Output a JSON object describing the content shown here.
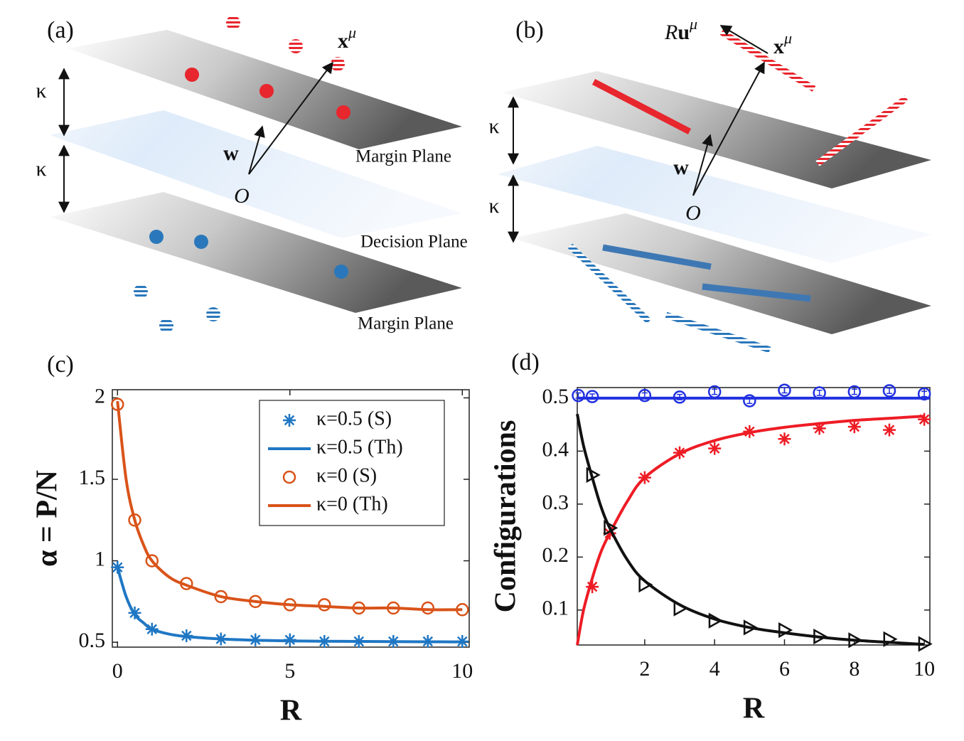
{
  "panel_a": {
    "label": "(a)",
    "kappa_top": "κ",
    "kappa_bottom": "κ",
    "w": "w",
    "origin": "O",
    "x_label": {
      "base": "x",
      "sup": "μ"
    },
    "margin_top": "Margin Plane",
    "decision": "Decision Plane",
    "margin_bottom": "Margin Plane"
  },
  "panel_b": {
    "label": "(b)",
    "kappa_top": "κ",
    "kappa_bottom": "κ",
    "w": "w",
    "origin": "O",
    "x_label": {
      "base": "x",
      "sup": "μ"
    },
    "ru_label": {
      "italic": "R",
      "base": "u",
      "sup": "μ"
    }
  },
  "chart_data": [
    {
      "type": "line",
      "panel_label": "(c)",
      "xlabel": "R",
      "ylabel": "α = P/N",
      "xlim": [
        -0.15,
        10.2
      ],
      "ylim": [
        0.47,
        2.05
      ],
      "xticks": [
        0,
        5,
        10
      ],
      "yticks": [
        0.5,
        1,
        1.5,
        2
      ],
      "legend": "upper right",
      "series": [
        {
          "name": "κ=0.5 (S)",
          "color": "#1f77c4",
          "marker": "asterisk",
          "line": false,
          "x": [
            0,
            0.5,
            1,
            2,
            3,
            4,
            5,
            6,
            7,
            8,
            9,
            10
          ],
          "values": [
            0.96,
            0.68,
            0.58,
            0.54,
            0.52,
            0.515,
            0.515,
            0.505,
            0.505,
            0.505,
            0.505,
            0.505
          ]
        },
        {
          "name": "κ=0.5 (Th)",
          "color": "#1f77c4",
          "marker": "none",
          "line": true,
          "x": [
            0,
            0.25,
            0.5,
            0.75,
            1,
            1.5,
            2,
            3,
            4,
            5,
            6,
            7,
            8,
            9,
            10
          ],
          "values": [
            0.96,
            0.78,
            0.67,
            0.62,
            0.58,
            0.55,
            0.535,
            0.52,
            0.512,
            0.508,
            0.506,
            0.505,
            0.504,
            0.503,
            0.502
          ]
        },
        {
          "name": "κ=0 (S)",
          "color": "#d95319",
          "marker": "circle",
          "line": false,
          "x": [
            0,
            0.5,
            1,
            2,
            3,
            4,
            5,
            6,
            7,
            8,
            9,
            10
          ],
          "values": [
            1.96,
            1.25,
            1.0,
            0.86,
            0.78,
            0.75,
            0.73,
            0.73,
            0.71,
            0.71,
            0.71,
            0.7
          ]
        },
        {
          "name": "κ=0 (Th)",
          "color": "#d95319",
          "marker": "none",
          "line": true,
          "x": [
            0,
            0.25,
            0.5,
            0.75,
            1,
            1.5,
            2,
            3,
            4,
            5,
            6,
            7,
            8,
            9,
            10
          ],
          "values": [
            1.98,
            1.5,
            1.25,
            1.1,
            1.0,
            0.9,
            0.85,
            0.78,
            0.75,
            0.73,
            0.72,
            0.71,
            0.71,
            0.7,
            0.7
          ]
        }
      ]
    },
    {
      "type": "line",
      "panel_label": "(d)",
      "xlabel": "R",
      "ylabel": "Configurations",
      "xlim": [
        0.07,
        10.16
      ],
      "ylim": [
        0.034,
        0.52
      ],
      "xticks": [
        2,
        4,
        6,
        8,
        10
      ],
      "yticks": [
        0.1,
        0.2,
        0.3,
        0.4,
        0.5
      ],
      "series": [
        {
          "color": "#2030e0",
          "marker": "circle",
          "line": false,
          "x": [
            0.1,
            0.5,
            2,
            3,
            4,
            5,
            6,
            7,
            8,
            9,
            10
          ],
          "values": [
            0.505,
            0.503,
            0.505,
            0.502,
            0.512,
            0.495,
            0.515,
            0.51,
            0.512,
            0.514,
            0.508
          ],
          "errors": [
            0.005,
            0.005,
            0.005,
            0.005,
            0.005,
            0.005,
            0.005,
            0.005,
            0.005,
            0.005,
            0.005
          ]
        },
        {
          "color": "#2030e0",
          "marker": "none",
          "line": true,
          "x": [
            0.07,
            10.16
          ],
          "values": [
            0.5,
            0.5
          ]
        },
        {
          "color": "#ee1c25",
          "marker": "asterisk",
          "line": false,
          "x": [
            0.5,
            1,
            2,
            3,
            4,
            5,
            6,
            7,
            8,
            9,
            10
          ],
          "values": [
            0.144,
            0.245,
            0.35,
            0.397,
            0.405,
            0.437,
            0.423,
            0.443,
            0.446,
            0.44,
            0.46
          ]
        },
        {
          "color": "#ee1c25",
          "marker": "none",
          "line": true,
          "x": [
            0.07,
            0.25,
            0.5,
            0.75,
            1,
            1.5,
            2,
            3,
            4,
            5,
            6,
            7,
            8,
            9,
            10
          ],
          "values": [
            0.034,
            0.1,
            0.16,
            0.21,
            0.245,
            0.305,
            0.35,
            0.395,
            0.42,
            0.435,
            0.445,
            0.452,
            0.458,
            0.462,
            0.466
          ]
        },
        {
          "color": "#111111",
          "marker": "triangle",
          "line": false,
          "x": [
            0.5,
            1,
            2,
            3,
            4,
            5,
            6,
            7,
            8,
            9,
            10
          ],
          "values": [
            0.355,
            0.255,
            0.148,
            0.103,
            0.08,
            0.067,
            0.062,
            0.05,
            0.043,
            0.045,
            0.036
          ]
        },
        {
          "color": "#111111",
          "marker": "none",
          "line": true,
          "x": [
            0.07,
            0.25,
            0.5,
            0.75,
            1,
            1.5,
            2,
            3,
            4,
            5,
            6,
            7,
            8,
            9,
            10
          ],
          "values": [
            0.47,
            0.41,
            0.35,
            0.295,
            0.255,
            0.195,
            0.155,
            0.11,
            0.083,
            0.067,
            0.057,
            0.049,
            0.043,
            0.039,
            0.035
          ]
        }
      ]
    }
  ]
}
